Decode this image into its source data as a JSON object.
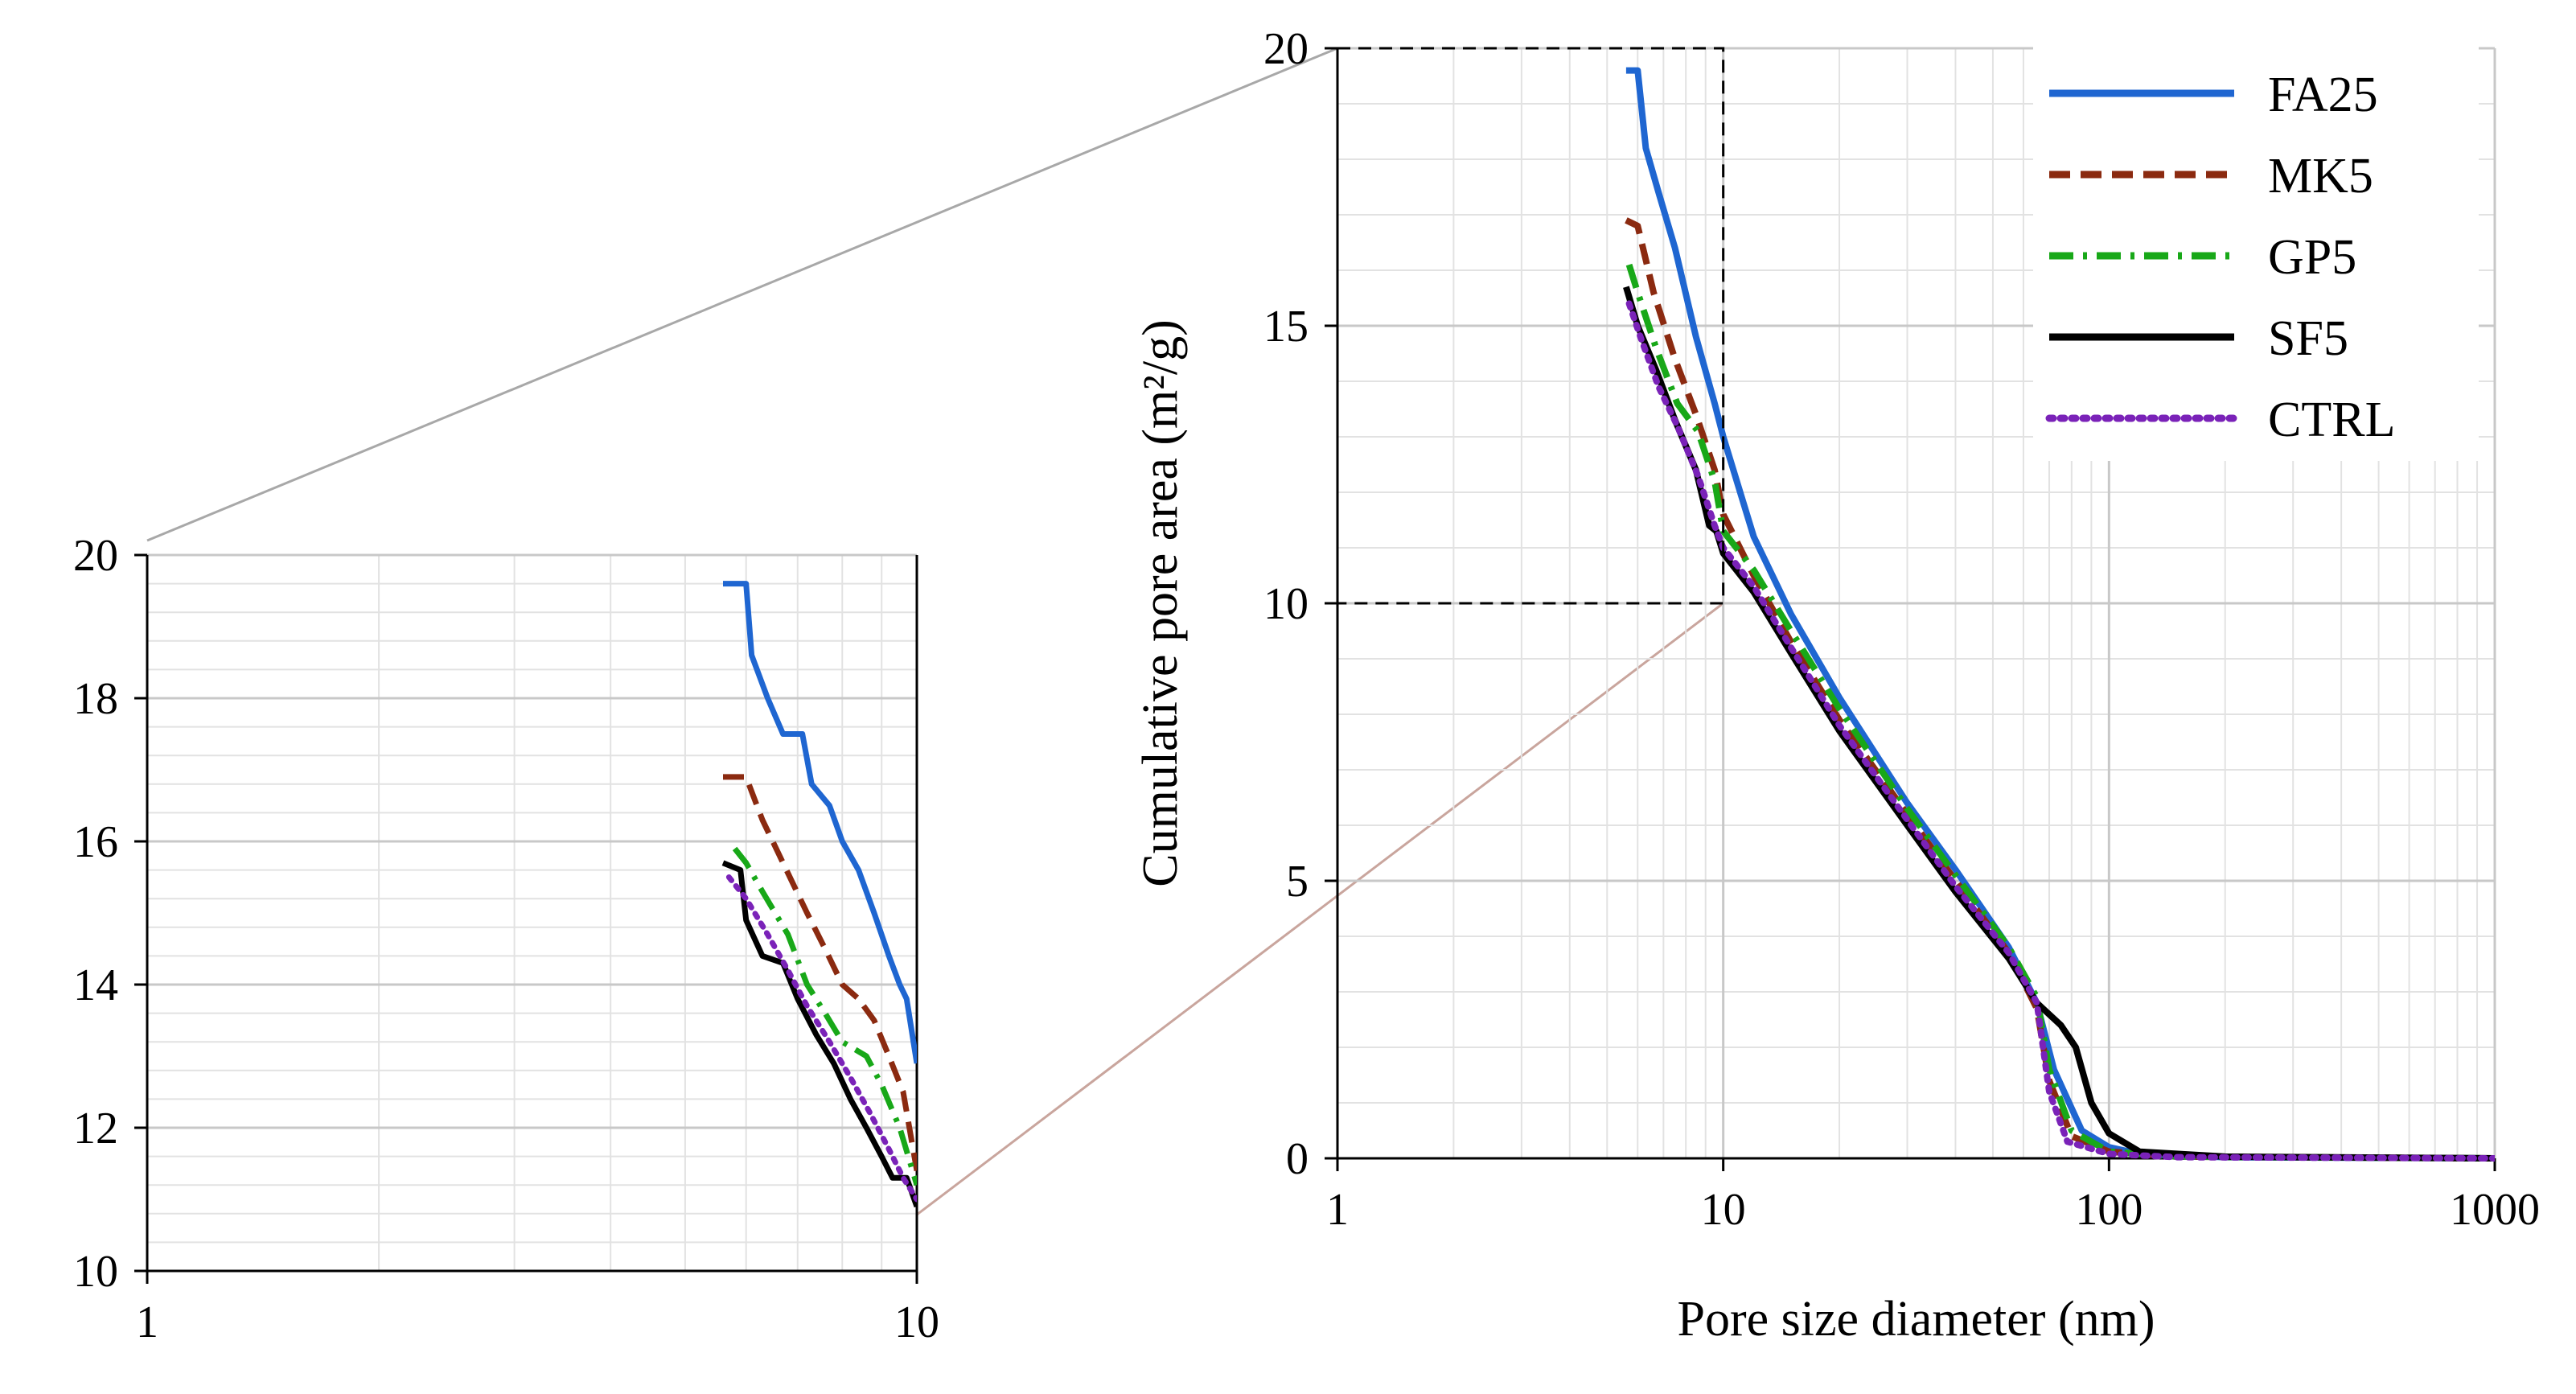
{
  "chart_data": [
    {
      "id": "main",
      "type": "line",
      "title": "",
      "xlabel": "Pore size diameter (nm)",
      "ylabel": "Cumulative pore area (m²/g)",
      "xscale": "log",
      "xlim": [
        1,
        1000
      ],
      "ylim": [
        0,
        20
      ],
      "xticks": [
        1,
        10,
        100,
        1000
      ],
      "xtick_labels": [
        "1",
        "10",
        "100",
        "1000"
      ],
      "yticks": [
        0,
        5,
        10,
        15,
        20
      ],
      "ytick_labels": [
        "0",
        "5",
        "10",
        "15",
        "20"
      ],
      "grid": true,
      "legend_position": "top-right",
      "zoom_box": {
        "x": [
          1,
          10
        ],
        "y": [
          10,
          20
        ]
      },
      "series": [
        {
          "name": "FA25",
          "color": "#1f66d1",
          "style": "solid",
          "points": [
            [
              5.6,
              19.6
            ],
            [
              6.0,
              19.6
            ],
            [
              6.3,
              18.2
            ],
            [
              6.8,
              17.4
            ],
            [
              7.5,
              16.4
            ],
            [
              8.5,
              14.8
            ],
            [
              9.5,
              13.6
            ],
            [
              10,
              13.0
            ],
            [
              12,
              11.2
            ],
            [
              15,
              9.8
            ],
            [
              20,
              8.3
            ],
            [
              30,
              6.4
            ],
            [
              40,
              5.2
            ],
            [
              55,
              3.8
            ],
            [
              65,
              2.8
            ],
            [
              72,
              1.6
            ],
            [
              85,
              0.5
            ],
            [
              100,
              0.2
            ],
            [
              120,
              0.08
            ],
            [
              200,
              0.02
            ],
            [
              1000,
              0.0
            ]
          ]
        },
        {
          "name": "MK5",
          "color": "#8b2a10",
          "style": "dashed",
          "points": [
            [
              5.6,
              16.9
            ],
            [
              6.0,
              16.8
            ],
            [
              6.6,
              15.6
            ],
            [
              7.5,
              14.4
            ],
            [
              8.5,
              13.4
            ],
            [
              9.5,
              12.4
            ],
            [
              10,
              11.6
            ],
            [
              12,
              10.5
            ],
            [
              15,
              9.3
            ],
            [
              20,
              7.9
            ],
            [
              30,
              6.2
            ],
            [
              40,
              5.0
            ],
            [
              55,
              3.7
            ],
            [
              65,
              2.7
            ],
            [
              70,
              1.4
            ],
            [
              80,
              0.4
            ],
            [
              100,
              0.12
            ],
            [
              150,
              0.03
            ],
            [
              1000,
              0.0
            ]
          ]
        },
        {
          "name": "GP5",
          "color": "#18a818",
          "style": "dashdot",
          "points": [
            [
              5.7,
              16.1
            ],
            [
              6.0,
              15.6
            ],
            [
              6.7,
              14.6
            ],
            [
              7.6,
              13.6
            ],
            [
              8.6,
              13.1
            ],
            [
              9.5,
              12.2
            ],
            [
              10,
              11.3
            ],
            [
              12,
              10.6
            ],
            [
              15,
              9.5
            ],
            [
              20,
              8.1
            ],
            [
              30,
              6.3
            ],
            [
              40,
              5.1
            ],
            [
              55,
              3.8
            ],
            [
              65,
              2.9
            ],
            [
              70,
              1.6
            ],
            [
              80,
              0.5
            ],
            [
              100,
              0.12
            ],
            [
              150,
              0.03
            ],
            [
              1000,
              0.0
            ]
          ]
        },
        {
          "name": "SF5",
          "color": "#000000",
          "style": "solid",
          "points": [
            [
              5.6,
              15.7
            ],
            [
              6.0,
              15.0
            ],
            [
              6.7,
              14.2
            ],
            [
              7.5,
              13.3
            ],
            [
              8.5,
              12.4
            ],
            [
              9.2,
              11.4
            ],
            [
              9.6,
              11.3
            ],
            [
              10,
              10.9
            ],
            [
              12,
              10.2
            ],
            [
              15,
              9.1
            ],
            [
              20,
              7.7
            ],
            [
              30,
              6.0
            ],
            [
              40,
              4.8
            ],
            [
              55,
              3.6
            ],
            [
              65,
              2.8
            ],
            [
              75,
              2.4
            ],
            [
              82,
              2.0
            ],
            [
              90,
              1.0
            ],
            [
              100,
              0.45
            ],
            [
              120,
              0.12
            ],
            [
              200,
              0.03
            ],
            [
              1000,
              0.0
            ]
          ]
        },
        {
          "name": "CTRL",
          "color": "#7a22b8",
          "style": "dotted",
          "points": [
            [
              5.7,
              15.4
            ],
            [
              6.1,
              14.8
            ],
            [
              6.8,
              13.9
            ],
            [
              7.6,
              13.2
            ],
            [
              8.6,
              12.3
            ],
            [
              9.5,
              11.4
            ],
            [
              10,
              11.0
            ],
            [
              12,
              10.3
            ],
            [
              15,
              9.2
            ],
            [
              20,
              7.8
            ],
            [
              30,
              6.1
            ],
            [
              40,
              4.9
            ],
            [
              55,
              3.7
            ],
            [
              65,
              2.8
            ],
            [
              70,
              1.2
            ],
            [
              78,
              0.3
            ],
            [
              100,
              0.08
            ],
            [
              150,
              0.02
            ],
            [
              1000,
              0.0
            ]
          ]
        }
      ]
    },
    {
      "id": "inset",
      "type": "line",
      "title": "",
      "xlabel": "",
      "ylabel": "",
      "xscale": "log",
      "xlim": [
        1,
        10
      ],
      "ylim": [
        10,
        20
      ],
      "xticks": [
        1,
        10
      ],
      "xtick_labels": [
        "1",
        "10"
      ],
      "yticks": [
        10,
        12,
        14,
        16,
        18,
        20
      ],
      "ytick_labels": [
        "10",
        "12",
        "14",
        "16",
        "18",
        "20"
      ],
      "grid": true,
      "series": [
        {
          "name": "FA25",
          "color": "#1f66d1",
          "style": "solid",
          "points": [
            [
              5.6,
              19.6
            ],
            [
              6.0,
              19.6
            ],
            [
              6.1,
              18.6
            ],
            [
              6.4,
              18.0
            ],
            [
              6.7,
              17.5
            ],
            [
              7.1,
              17.5
            ],
            [
              7.3,
              16.8
            ],
            [
              7.7,
              16.5
            ],
            [
              8.0,
              16.0
            ],
            [
              8.4,
              15.6
            ],
            [
              8.8,
              15.0
            ],
            [
              9.2,
              14.4
            ],
            [
              9.5,
              14.0
            ],
            [
              9.7,
              13.8
            ],
            [
              10,
              12.9
            ]
          ]
        },
        {
          "name": "MK5",
          "color": "#8b2a10",
          "style": "dashed",
          "points": [
            [
              5.6,
              16.9
            ],
            [
              6.0,
              16.9
            ],
            [
              6.3,
              16.3
            ],
            [
              6.7,
              15.7
            ],
            [
              7.2,
              15.0
            ],
            [
              7.6,
              14.5
            ],
            [
              8.0,
              14.0
            ],
            [
              8.4,
              13.8
            ],
            [
              8.8,
              13.5
            ],
            [
              9.2,
              13.0
            ],
            [
              9.6,
              12.5
            ],
            [
              10,
              11.4
            ]
          ]
        },
        {
          "name": "GP5",
          "color": "#18a818",
          "style": "dashdot",
          "points": [
            [
              5.8,
              15.9
            ],
            [
              6.0,
              15.7
            ],
            [
              6.3,
              15.3
            ],
            [
              6.8,
              14.7
            ],
            [
              7.2,
              14.0
            ],
            [
              7.6,
              13.6
            ],
            [
              8.0,
              13.2
            ],
            [
              8.6,
              13.0
            ],
            [
              9.0,
              12.6
            ],
            [
              9.5,
              12.0
            ],
            [
              10,
              11.2
            ]
          ]
        },
        {
          "name": "SF5",
          "color": "#000000",
          "style": "solid",
          "points": [
            [
              5.6,
              15.7
            ],
            [
              5.9,
              15.6
            ],
            [
              6.0,
              14.9
            ],
            [
              6.3,
              14.4
            ],
            [
              6.7,
              14.3
            ],
            [
              7.0,
              13.8
            ],
            [
              7.4,
              13.3
            ],
            [
              7.8,
              12.9
            ],
            [
              8.2,
              12.4
            ],
            [
              8.6,
              12.0
            ],
            [
              9.0,
              11.6
            ],
            [
              9.3,
              11.3
            ],
            [
              9.7,
              11.3
            ],
            [
              10,
              10.9
            ]
          ]
        },
        {
          "name": "CTRL",
          "color": "#7a22b8",
          "style": "dotted",
          "points": [
            [
              5.7,
              15.5
            ],
            [
              6.0,
              15.2
            ],
            [
              6.4,
              14.7
            ],
            [
              6.8,
              14.2
            ],
            [
              7.2,
              13.7
            ],
            [
              7.7,
              13.2
            ],
            [
              8.2,
              12.7
            ],
            [
              8.7,
              12.2
            ],
            [
              9.2,
              11.7
            ],
            [
              9.6,
              11.3
            ],
            [
              10,
              11.0
            ]
          ]
        }
      ]
    }
  ]
}
